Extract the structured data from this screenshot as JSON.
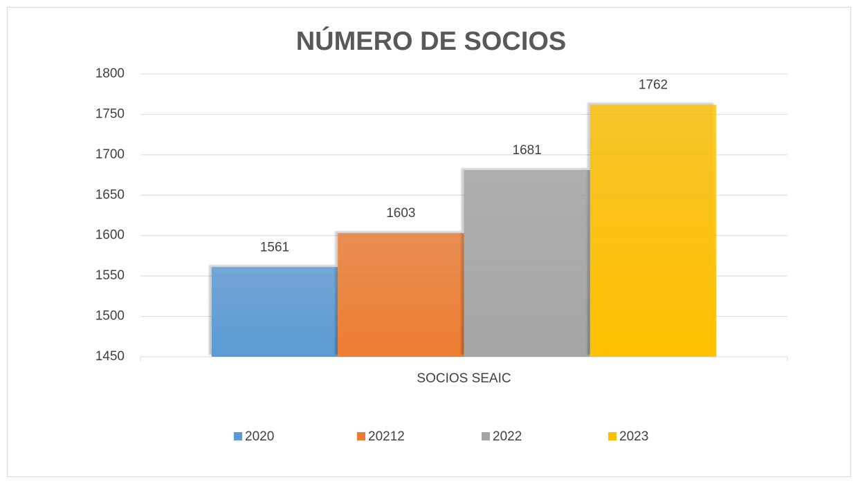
{
  "chart_data": {
    "type": "bar",
    "title": "NÚMERO DE SOCIOS",
    "categories": [
      "SOCIOS SEAIC"
    ],
    "series": [
      {
        "name": "2020",
        "color": "#5b9bd5",
        "values": [
          1561
        ]
      },
      {
        "name": "20212",
        "color": "#ed7d31",
        "values": [
          1603
        ]
      },
      {
        "name": "2022",
        "color": "#a5a5a5",
        "values": [
          1681
        ]
      },
      {
        "name": "2023",
        "color": "#ffc000",
        "values": [
          1762
        ]
      }
    ],
    "ylim": [
      1450,
      1800
    ],
    "yticks": [
      1450,
      1500,
      1550,
      1600,
      1650,
      1700,
      1750,
      1800
    ],
    "grid": true,
    "legend": "bottom"
  }
}
